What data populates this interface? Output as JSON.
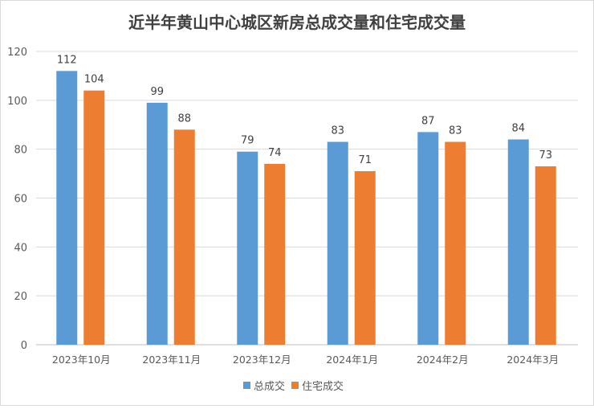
{
  "chart_data": {
    "type": "bar",
    "title": "近半年黄山中心城区新房总成交量和住宅成交量",
    "categories": [
      "2023年10月",
      "2023年11月",
      "2023年12月",
      "2024年1月",
      "2024年2月",
      "2024年3月"
    ],
    "series": [
      {
        "name": "总成交",
        "values": [
          112,
          99,
          79,
          83,
          87,
          84
        ],
        "color": "#5B9BD5"
      },
      {
        "name": "住宅成交",
        "values": [
          104,
          88,
          74,
          71,
          83,
          73
        ],
        "color": "#ED7D31"
      }
    ],
    "ylim": [
      0,
      120
    ],
    "yticks": [
      0,
      20,
      40,
      60,
      80,
      100,
      120
    ],
    "grid": true,
    "legend": "bottom",
    "xlabel": "",
    "ylabel": ""
  }
}
